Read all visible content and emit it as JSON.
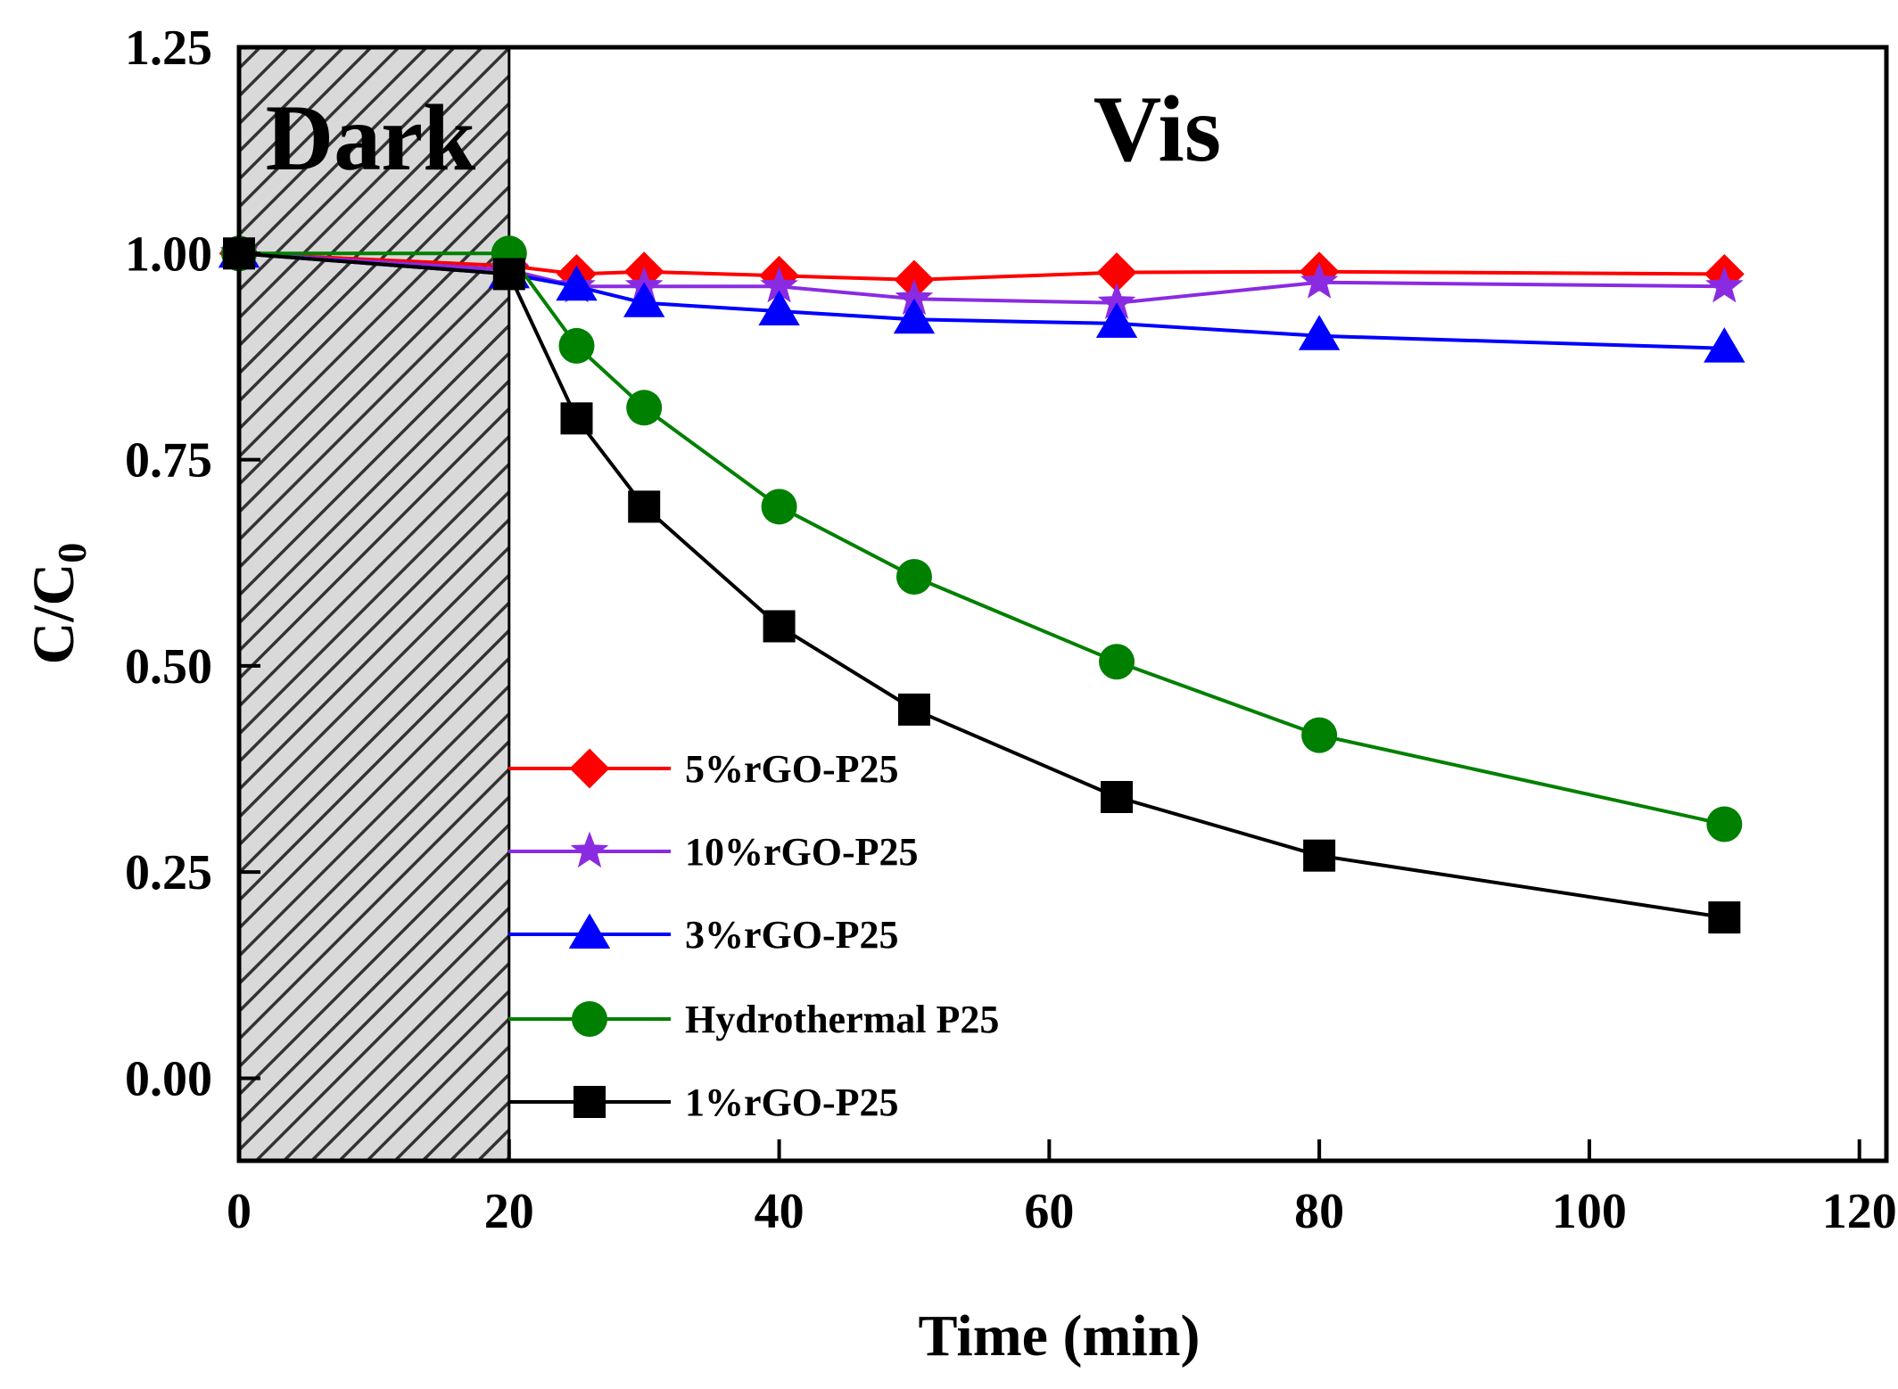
{
  "chart_data": {
    "type": "line",
    "title": "",
    "xlabel": "Time (min)",
    "ylabel": "C/C",
    "ylabel_subscript": "0",
    "xlim": [
      0,
      122
    ],
    "ylim": [
      -0.1,
      1.25
    ],
    "xticks": [
      0,
      20,
      40,
      60,
      80,
      100,
      120
    ],
    "xtick_labels": [
      "0",
      "20",
      "40",
      "60",
      "80",
      "100",
      "120"
    ],
    "yticks": [
      0,
      0.25,
      0.5,
      0.75,
      1.0,
      1.25
    ],
    "ytick_labels": [
      "0.00",
      "0.25",
      "0.50",
      "0.75",
      "1.00",
      "1.25"
    ],
    "shaded_region": {
      "x_start": 0,
      "x_end": 20,
      "pattern": "hatched",
      "label": "Dark"
    },
    "annotations": [
      {
        "text": "Vis",
        "x": 68,
        "y": 1.14
      }
    ],
    "legend_position": "lower-center",
    "series": [
      {
        "name": "5%rGO-P25",
        "color": "#ff0000",
        "marker": "diamond",
        "x": [
          0,
          20,
          25,
          30,
          40,
          50,
          65,
          80,
          110
        ],
        "values": [
          1.0,
          0.985,
          0.975,
          0.978,
          0.973,
          0.968,
          0.977,
          0.978,
          0.975
        ]
      },
      {
        "name": "10%rGO-P25",
        "color": "#8a2be2",
        "marker": "star",
        "x": [
          0,
          20,
          25,
          30,
          40,
          50,
          65,
          80,
          110
        ],
        "values": [
          1.0,
          0.98,
          0.96,
          0.96,
          0.96,
          0.945,
          0.94,
          0.965,
          0.96
        ]
      },
      {
        "name": "3%rGO-P25",
        "color": "#0000ff",
        "marker": "triangle",
        "x": [
          0,
          20,
          25,
          30,
          40,
          50,
          65,
          80,
          110
        ],
        "values": [
          1.0,
          0.975,
          0.96,
          0.94,
          0.93,
          0.92,
          0.915,
          0.9,
          0.885
        ]
      },
      {
        "name": "Hydrothermal P25",
        "color": "#008000",
        "marker": "circle",
        "x": [
          0,
          20,
          25,
          30,
          40,
          50,
          65,
          80,
          110
        ],
        "values": [
          1.0,
          1.0,
          0.888,
          0.813,
          0.693,
          0.608,
          0.505,
          0.416,
          0.308
        ]
      },
      {
        "name": "1%rGO-P25",
        "color": "#000000",
        "marker": "square",
        "x": [
          0,
          20,
          25,
          30,
          40,
          50,
          65,
          80,
          110
        ],
        "values": [
          1.0,
          0.975,
          0.8,
          0.693,
          0.548,
          0.447,
          0.341,
          0.27,
          0.195
        ]
      }
    ],
    "legend_order": [
      0,
      1,
      2,
      3,
      4
    ]
  }
}
